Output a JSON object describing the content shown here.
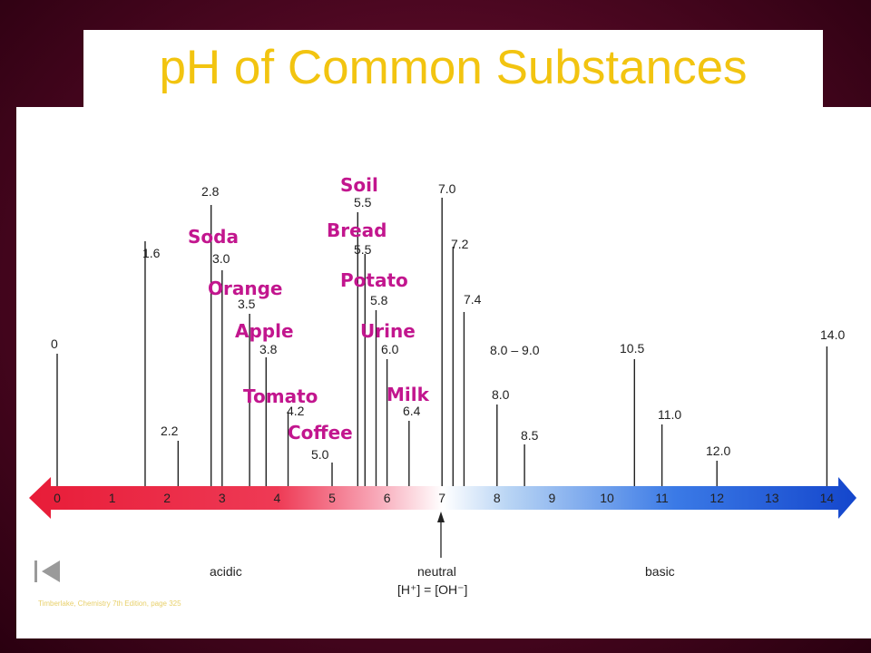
{
  "title": "pH of Common Substances",
  "scale": {
    "ticks": [
      "0",
      "1",
      "2",
      "3",
      "4",
      "5",
      "6",
      "7",
      "8",
      "9",
      "10",
      "11",
      "12",
      "13",
      "14"
    ]
  },
  "markers": [
    {
      "ph": 0,
      "label": "0"
    },
    {
      "ph": 1.6,
      "label": "1.6"
    },
    {
      "ph": 2.2,
      "label": "2.2"
    },
    {
      "ph": 2.8,
      "label": "2.8"
    },
    {
      "ph": 3.0,
      "label": "3.0"
    },
    {
      "ph": 3.5,
      "label": "3.5"
    },
    {
      "ph": 3.8,
      "label": "3.8"
    },
    {
      "ph": 4.2,
      "label": "4.2"
    },
    {
      "ph": 5.0,
      "label": "5.0"
    },
    {
      "ph": 5.5,
      "label": "5.5"
    },
    {
      "ph": 5.5,
      "label": "5.5"
    },
    {
      "ph": 5.8,
      "label": "5.8"
    },
    {
      "ph": 6.0,
      "label": "6.0"
    },
    {
      "ph": 6.4,
      "label": "6.4"
    },
    {
      "ph": 7.0,
      "label": "7.0"
    },
    {
      "ph": 7.2,
      "label": "7.2"
    },
    {
      "ph": 7.4,
      "label": "7.4"
    },
    {
      "ph": 8.0,
      "label": "8.0"
    },
    {
      "ph": 8.0,
      "label": "8.0 – 9.0"
    },
    {
      "ph": 8.5,
      "label": "8.5"
    },
    {
      "ph": 10.5,
      "label": "10.5"
    },
    {
      "ph": 11.0,
      "label": "11.0"
    },
    {
      "ph": 12.0,
      "label": "12.0"
    },
    {
      "ph": 14.0,
      "label": "14.0"
    }
  ],
  "substances": [
    "Soil",
    "Bread",
    "Soda",
    "Potato",
    "Orange",
    "Apple",
    "Urine",
    "Tomato",
    "Milk",
    "Coffee"
  ],
  "captions": {
    "acidic": "acidic",
    "neutral": "neutral",
    "equation": "[H⁺] = [OH⁻]",
    "basic": "basic"
  },
  "credit": "Timberlake, Chemistry 7th Edition, page 325",
  "colors": {
    "title": "#f2c410",
    "substance_label": "#c2168e",
    "acid_bar": "#e8203c",
    "base_bar": "#1a50d8"
  },
  "icons": {
    "nav": "first-slide-icon"
  }
}
